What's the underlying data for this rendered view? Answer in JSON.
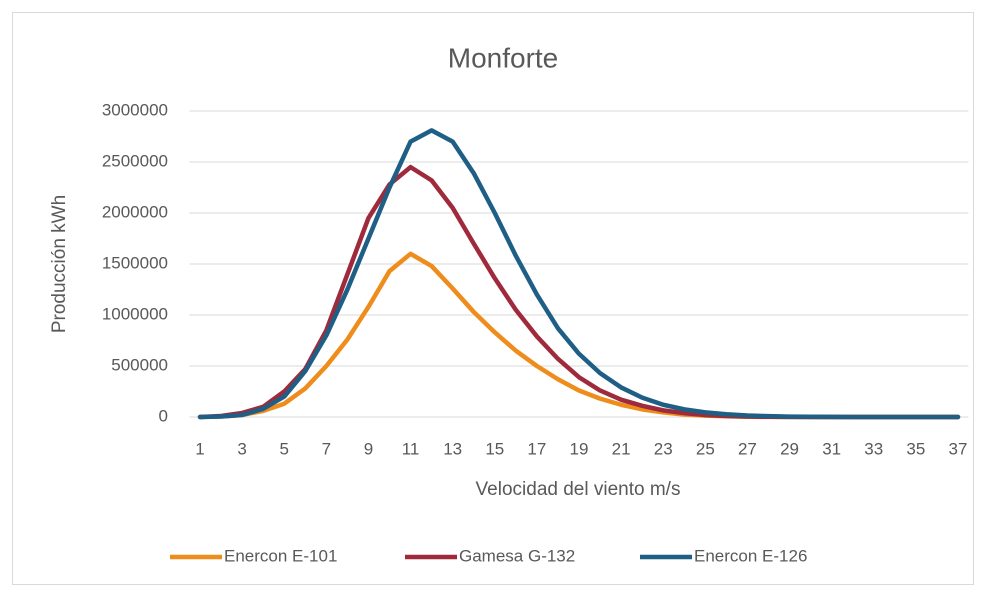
{
  "chart_data": {
    "type": "line",
    "title": "Monforte",
    "x_label": "Velocidad del viento m/s",
    "y_label": "Producción kWh",
    "categories": [
      1,
      null,
      3,
      null,
      5,
      null,
      7,
      null,
      9,
      null,
      11,
      null,
      13,
      null,
      15,
      null,
      17,
      null,
      19,
      null,
      21,
      null,
      23,
      null,
      25,
      null,
      27,
      null,
      29,
      null,
      31,
      null,
      33,
      null,
      35,
      null,
      37
    ],
    "series": [
      {
        "name": "Enercon E-101",
        "color": "#ee8c1c",
        "values": [
          0,
          5000,
          20000,
          60000,
          130000,
          280000,
          500000,
          760000,
          1080000,
          1430000,
          1600000,
          1480000,
          1260000,
          1030000,
          830000,
          650000,
          500000,
          370000,
          260000,
          180000,
          120000,
          75000,
          45000,
          25000,
          13000,
          7000,
          3000,
          1000,
          0,
          0,
          0,
          0,
          0,
          0,
          0,
          0,
          0
        ]
      },
      {
        "name": "Gamesa G-132",
        "color": "#9e2a3c",
        "values": [
          0,
          10000,
          40000,
          100000,
          250000,
          470000,
          850000,
          1400000,
          1950000,
          2280000,
          2450000,
          2320000,
          2050000,
          1700000,
          1360000,
          1050000,
          790000,
          570000,
          390000,
          260000,
          170000,
          110000,
          65000,
          38000,
          20000,
          10000,
          5000,
          2000,
          1000,
          0,
          0,
          0,
          0,
          0,
          0,
          0,
          0
        ]
      },
      {
        "name": "Enercon E-126",
        "color": "#1f5f86",
        "values": [
          0,
          5000,
          20000,
          80000,
          200000,
          450000,
          800000,
          1250000,
          1750000,
          2250000,
          2700000,
          2810000,
          2700000,
          2390000,
          2000000,
          1580000,
          1200000,
          870000,
          620000,
          430000,
          290000,
          190000,
          120000,
          75000,
          45000,
          27000,
          15000,
          8000,
          4000,
          2000,
          1000,
          0,
          0,
          0,
          0,
          0,
          0
        ]
      }
    ],
    "ylim": [
      0,
      3000000
    ],
    "yticks": [
      0,
      500000,
      1000000,
      1500000,
      2000000,
      2500000,
      3000000
    ],
    "grid": true,
    "legend": "bottom"
  }
}
